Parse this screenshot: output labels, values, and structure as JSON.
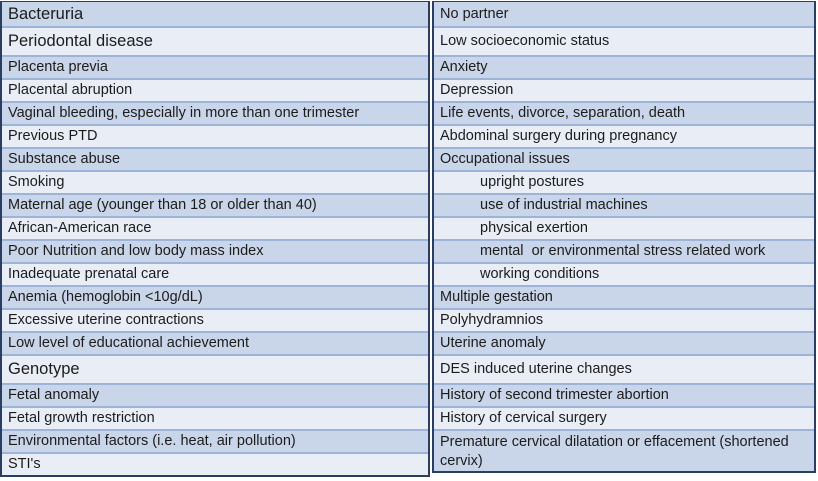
{
  "colors": {
    "row_shaded": "#c9d5e8",
    "row_unshaded": "#e8edf6",
    "outer_border": "#2a3e62",
    "row_separator": "#9db4d8",
    "text": "#1c1c1c"
  },
  "table": {
    "columns": [
      {
        "name": "left",
        "rows": [
          {
            "text": "Bacteruria",
            "emphasis": true
          },
          {
            "text": "Periodontal disease",
            "emphasis": true,
            "tall": true
          },
          {
            "text": "Placenta previa"
          },
          {
            "text": "Placental abruption"
          },
          {
            "text": "Vaginal bleeding, especially in more than one trimester"
          },
          {
            "text": "Previous PTD"
          },
          {
            "text": "Substance abuse"
          },
          {
            "text": "Smoking"
          },
          {
            "text": "Maternal age (younger than 18 or older than 40)"
          },
          {
            "text": "African-American race"
          },
          {
            "text": "Poor Nutrition and low body mass index"
          },
          {
            "text": "Inadequate prenatal care"
          },
          {
            "text": "Anemia (hemoglobin <10g/dL)"
          },
          {
            "text": "Excessive uterine contractions"
          },
          {
            "text": "Low level of educational achievement"
          },
          {
            "text": "Genotype",
            "emphasis": true,
            "tall": true
          },
          {
            "text": "Fetal anomaly"
          },
          {
            "text": "Fetal growth restriction"
          },
          {
            "text": "Environmental factors (i.e. heat, air pollution)"
          },
          {
            "text": "STI's"
          }
        ]
      },
      {
        "name": "right",
        "rows": [
          {
            "text": "No partner"
          },
          {
            "text": "Low socioeconomic status",
            "tall": true
          },
          {
            "text": "Anxiety"
          },
          {
            "text": "Depression"
          },
          {
            "text": "Life events, divorce, separation, death"
          },
          {
            "text": "Abdominal surgery during pregnancy"
          },
          {
            "text": "Occupational issues"
          },
          {
            "text": "upright postures",
            "subitem": true
          },
          {
            "text": "use of industrial machines",
            "subitem": true
          },
          {
            "text": "physical exertion",
            "subitem": true
          },
          {
            "text": "mental  or environmental stress related work",
            "subitem": true
          },
          {
            "text": "working conditions",
            "subitem": true
          },
          {
            "text": "Multiple gestation"
          },
          {
            "text": "Polyhydramnios"
          },
          {
            "text": "Uterine anomaly"
          },
          {
            "text": "DES induced uterine changes",
            "tall": true
          },
          {
            "text": "History of second trimester abortion"
          },
          {
            "text": "History of cervical surgery"
          },
          {
            "text": "Premature cervical dilatation or effacement (shortened cervix)",
            "twoline": true
          }
        ]
      }
    ]
  }
}
